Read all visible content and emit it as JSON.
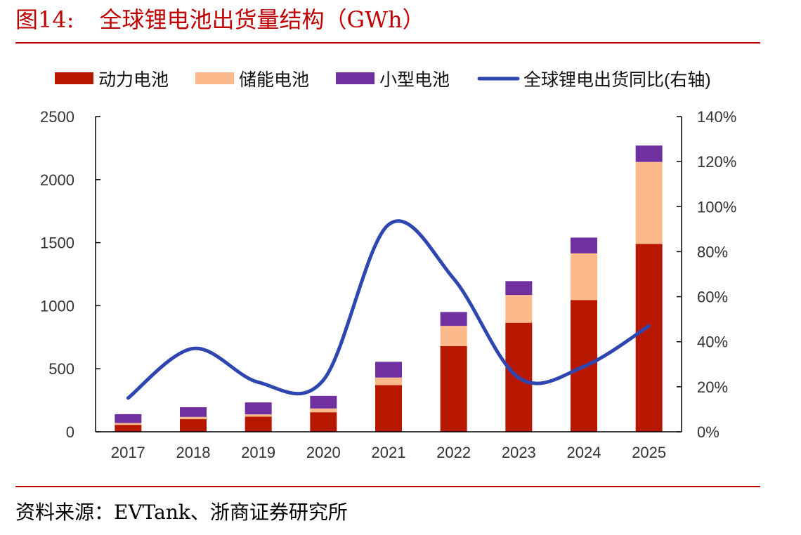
{
  "figure": {
    "number": "图14:",
    "title": "全球锂电池出货量结构（GWh）",
    "source": "资料来源：EVTank、浙商证券研究所"
  },
  "chart_data": {
    "type": "bar",
    "stacked": true,
    "categories": [
      "2017",
      "2018",
      "2019",
      "2020",
      "2021",
      "2022",
      "2023",
      "2024",
      "2025"
    ],
    "series": [
      {
        "name": "动力电池",
        "type": "bar",
        "axis": "left",
        "color": "#b81800",
        "values": [
          55,
          100,
          120,
          155,
          370,
          680,
          865,
          1045,
          1490
        ]
      },
      {
        "name": "储能电池",
        "type": "bar",
        "axis": "left",
        "color": "#fcb98b",
        "values": [
          15,
          18,
          18,
          30,
          60,
          160,
          220,
          370,
          650
        ]
      },
      {
        "name": "小型电池",
        "type": "bar",
        "axis": "left",
        "color": "#7030a0",
        "values": [
          70,
          77,
          95,
          100,
          125,
          110,
          110,
          125,
          130
        ]
      },
      {
        "name": "全球锂电出货同比(右轴)",
        "type": "line",
        "axis": "right",
        "color": "#2e46b0",
        "values": [
          0.15,
          0.37,
          0.22,
          0.23,
          0.92,
          0.68,
          0.24,
          0.29,
          0.47
        ]
      }
    ],
    "y_left": {
      "min": 0,
      "max": 2500,
      "ticks": [
        0,
        500,
        1000,
        1500,
        2000,
        2500
      ],
      "tick_labels": [
        "0",
        "500",
        "1000",
        "1500",
        "2000",
        "2500"
      ]
    },
    "y_right": {
      "min": 0,
      "max": 1.4,
      "ticks": [
        0,
        0.2,
        0.4,
        0.6,
        0.8,
        1.0,
        1.2,
        1.4
      ],
      "tick_labels": [
        "0%",
        "20%",
        "40%",
        "60%",
        "80%",
        "100%",
        "120%",
        "140%"
      ]
    },
    "legend": "top",
    "grid": false
  }
}
